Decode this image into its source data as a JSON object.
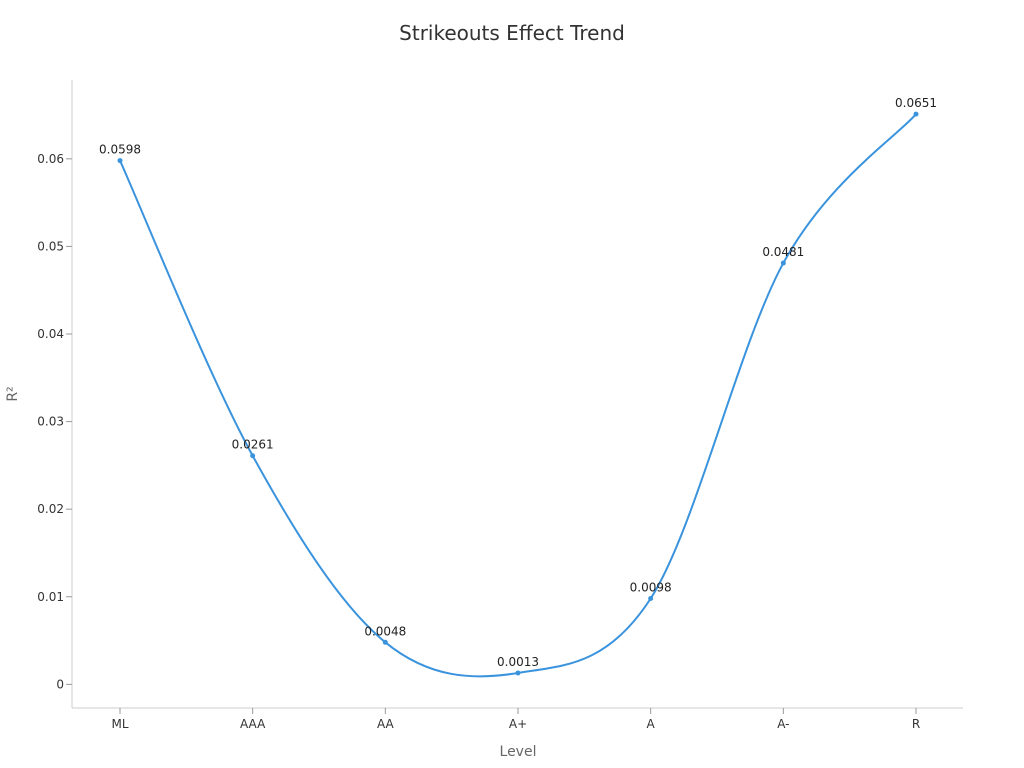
{
  "chart_data": {
    "type": "line",
    "title": "Strikeouts Effect Trend",
    "xlabel": "Level",
    "ylabel": "R²",
    "categories": [
      "ML",
      "AAA",
      "AA",
      "A+",
      "A",
      "A-",
      "R"
    ],
    "series": [
      {
        "values": [
          0.0598,
          0.0261,
          0.0048,
          0.0013,
          0.0098,
          0.0481,
          0.0651
        ],
        "labels": [
          "0.0598",
          "0.0261",
          "0.0048",
          "0.0013",
          "0.0098",
          "0.0481",
          "0.0651"
        ]
      }
    ],
    "yticks": [
      0,
      0.01,
      0.02,
      0.03,
      0.04,
      0.05,
      0.06
    ],
    "ytick_labels": [
      "0",
      "0.01",
      "0.02",
      "0.03",
      "0.04",
      "0.05",
      "0.06"
    ],
    "ylim": [
      -0.0027,
      0.069
    ],
    "grid": false,
    "legend": "none",
    "colors": {
      "line": "#3a93dd"
    }
  }
}
